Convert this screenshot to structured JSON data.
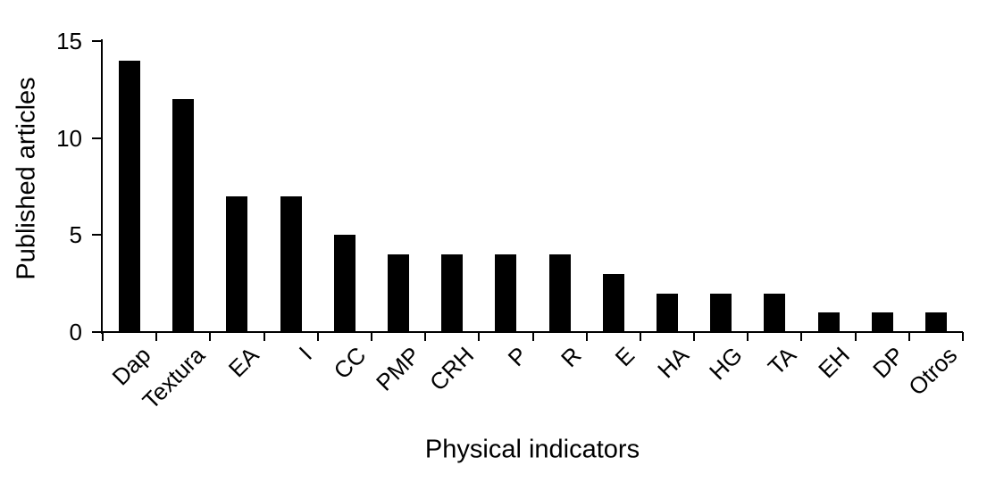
{
  "chart_data": {
    "type": "bar",
    "categories": [
      "Dap",
      "Textura",
      "EA",
      "I",
      "CC",
      "PMP",
      "CRH",
      "P",
      "R",
      "E",
      "HA",
      "HG",
      "TA",
      "EH",
      "DP",
      "Otros"
    ],
    "values": [
      14,
      12,
      7,
      7,
      5,
      4,
      4,
      4,
      4,
      3,
      2,
      2,
      2,
      1,
      1,
      1
    ],
    "title": "",
    "xlabel": "Physical indicators",
    "ylabel": "Published articles",
    "ylim": [
      0,
      15
    ],
    "yticks": [
      0,
      5,
      10,
      15
    ],
    "bar_color": "#000000",
    "axis_color": "#000000",
    "background": "#ffffff",
    "grid": false,
    "legend": "none"
  }
}
